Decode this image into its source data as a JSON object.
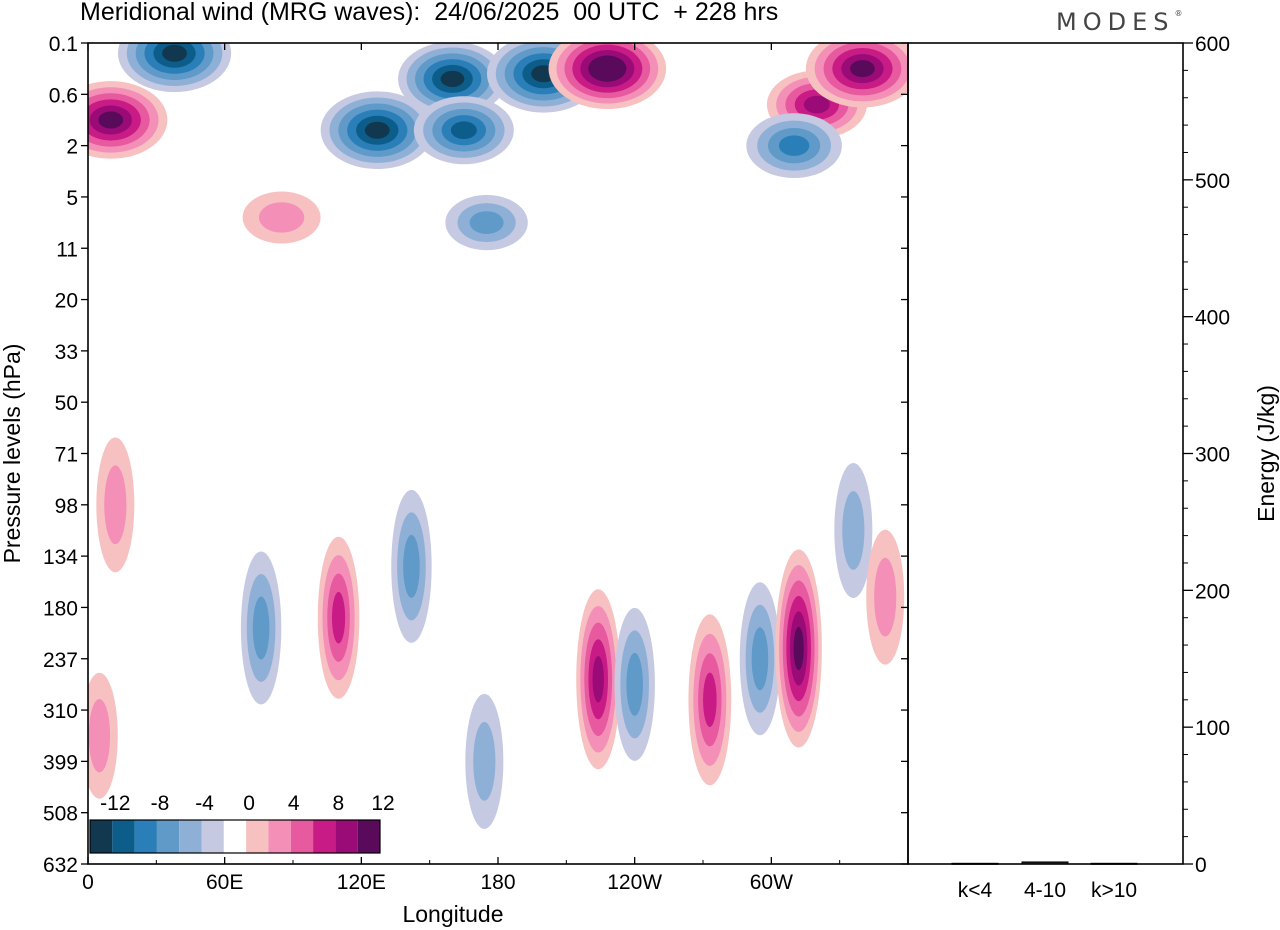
{
  "title": "Meridional wind (MRG waves):  24/06/2025  00 UTC  + 228 hrs",
  "logo": "MODES",
  "logo_mark": "®",
  "chart_data": [
    {
      "type": "heatmap",
      "title": "Meridional wind (MRG waves):  24/06/2025  00 UTC  + 228 hrs",
      "xlabel": "Longitude",
      "ylabel": "Pressure levels (hPa)",
      "x_ticks": [
        "0",
        "60E",
        "120E",
        "180",
        "120W",
        "60W"
      ],
      "x_tick_lon": [
        0,
        60,
        120,
        180,
        240,
        300
      ],
      "xlim": [
        0,
        360
      ],
      "y_ticks": [
        "0.1",
        "0.6",
        "2",
        "5",
        "11",
        "20",
        "33",
        "50",
        "71",
        "98",
        "134",
        "180",
        "237",
        "310",
        "399",
        "508",
        "632"
      ],
      "y_scale": "level index (top = 0.1 hPa, bottom = 632 hPa)",
      "colorbar": {
        "labels": [
          "-12",
          "-8",
          "-4",
          "0",
          "4",
          "8",
          "12"
        ],
        "levels": [
          -14,
          -12,
          -10,
          -8,
          -6,
          -4,
          -2,
          2,
          4,
          6,
          8,
          10,
          12,
          14
        ],
        "colors": [
          "#12384f",
          "#0d5d8b",
          "#2b7fb8",
          "#5f9ac9",
          "#8fb0d6",
          "#c5c9e2",
          "#ffffff",
          "#f8c1c1",
          "#f490b8",
          "#e85a9f",
          "#c81b86",
          "#9a0b78",
          "#5a0a5a"
        ],
        "placement": "bottom-left"
      },
      "cells": [
        {
          "lon": 10,
          "level": 1.5,
          "value": 13
        },
        {
          "lon": 38,
          "level": 0.2,
          "value": -13
        },
        {
          "lon": 160,
          "level": 0.7,
          "value": -12
        },
        {
          "lon": 200,
          "level": 0.6,
          "value": -13
        },
        {
          "lon": 228,
          "level": 0.5,
          "value": 14
        },
        {
          "lon": 127,
          "level": 1.7,
          "value": -13
        },
        {
          "lon": 165,
          "level": 1.7,
          "value": -10
        },
        {
          "lon": 320,
          "level": 1.2,
          "value": 10
        },
        {
          "lon": 340,
          "level": 0.5,
          "value": 13
        },
        {
          "lon": 310,
          "level": 2.0,
          "value": -9
        },
        {
          "lon": 175,
          "level": 3.5,
          "value": -6
        },
        {
          "lon": 85,
          "level": 3.4,
          "value": 5
        },
        {
          "lon": 12,
          "level": 9.0,
          "value": 5
        },
        {
          "lon": 142,
          "level": 10.2,
          "value": -7
        },
        {
          "lon": 76,
          "level": 11.4,
          "value": -7
        },
        {
          "lon": 110,
          "level": 11.2,
          "value": 8
        },
        {
          "lon": 224,
          "level": 12.4,
          "value": 10
        },
        {
          "lon": 240,
          "level": 12.5,
          "value": -7
        },
        {
          "lon": 273,
          "level": 12.8,
          "value": 9
        },
        {
          "lon": 295,
          "level": 12.0,
          "value": -7
        },
        {
          "lon": 312,
          "level": 11.8,
          "value": 12
        },
        {
          "lon": 336,
          "level": 9.5,
          "value": -5
        },
        {
          "lon": 350,
          "level": 10.8,
          "value": 5
        },
        {
          "lon": 174,
          "level": 14.0,
          "value": -5
        },
        {
          "lon": 5,
          "level": 13.5,
          "value": 4
        }
      ]
    },
    {
      "type": "bar",
      "ylabel": "Energy (J/kg)",
      "categories": [
        "k<4",
        "4-10",
        "k>10"
      ],
      "values": [
        0.5,
        1.5,
        0.5
      ],
      "ylim": [
        0,
        600
      ],
      "y_ticks": [
        "0",
        "100",
        "200",
        "300",
        "400",
        "500",
        "600"
      ]
    }
  ]
}
